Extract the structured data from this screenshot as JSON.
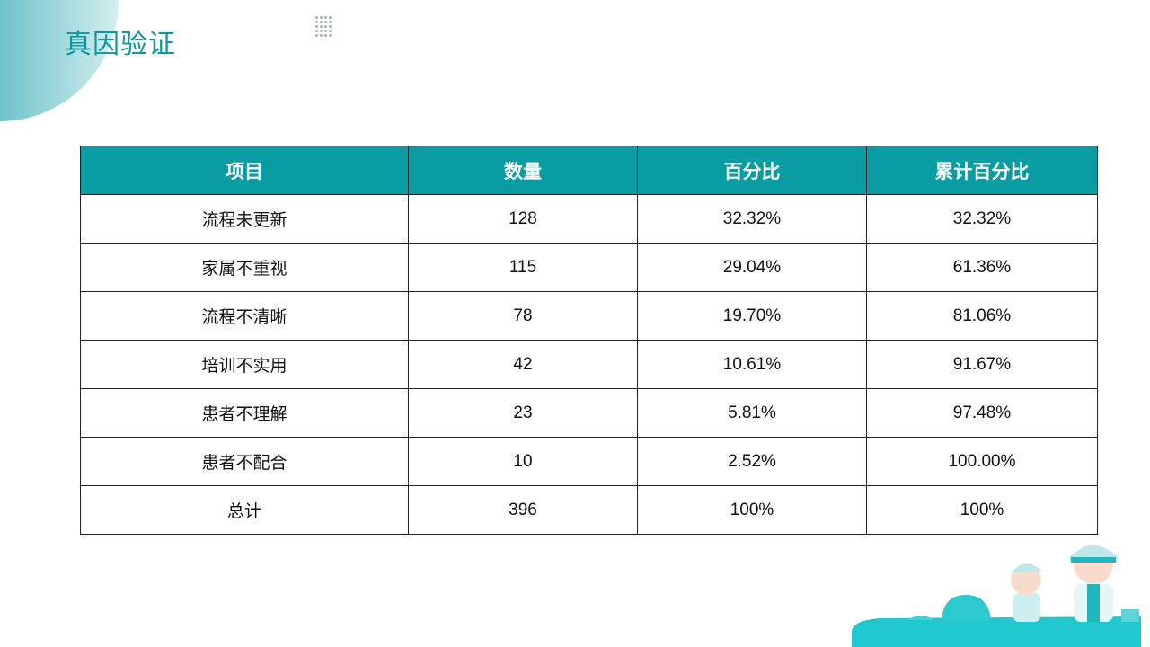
{
  "title": "真因验证",
  "colors": {
    "accent": "#0a9ca3",
    "title": "#10959c"
  },
  "table": {
    "headers": [
      "项目",
      "数量",
      "百分比",
      "累计百分比"
    ],
    "rows": [
      [
        "流程未更新",
        "128",
        "32.32%",
        "32.32%"
      ],
      [
        "家属不重视",
        "115",
        "29.04%",
        "61.36%"
      ],
      [
        "流程不清晰",
        "78",
        "19.70%",
        "81.06%"
      ],
      [
        "培训不实用",
        "42",
        "10.61%",
        "91.67%"
      ],
      [
        "患者不理解",
        "23",
        "5.81%",
        "97.48%"
      ],
      [
        "患者不配合",
        "10",
        "2.52%",
        "100.00%"
      ],
      [
        "总计",
        "396",
        "100%",
        "100%"
      ]
    ]
  },
  "decoration_icon": "doctor-nurse-cartoon-illustration"
}
